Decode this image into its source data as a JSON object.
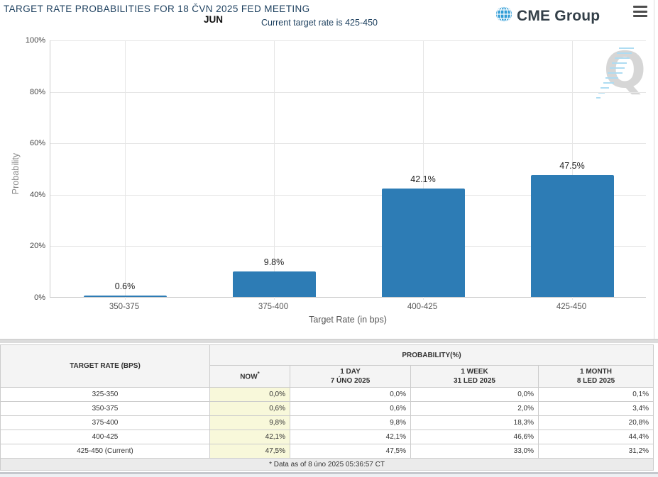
{
  "header": {
    "title": "TARGET RATE PROBABILITIES FOR 18 ČVN 2025 FED MEETING",
    "month_label": "JUN",
    "subtitle": "Current target rate is 425-450",
    "brand_name": "CME Group"
  },
  "chart_data": {
    "type": "bar",
    "categories": [
      "350-375",
      "375-400",
      "400-425",
      "425-450"
    ],
    "values": [
      0.6,
      9.8,
      42.1,
      47.5
    ],
    "value_labels": [
      "0.6%",
      "9.8%",
      "42.1%",
      "47.5%"
    ],
    "xlabel": "Target Rate (in bps)",
    "ylabel": "Probability",
    "ylim": [
      0,
      100
    ],
    "ytick_values": [
      0,
      20,
      40,
      60,
      80,
      100
    ],
    "ytick_labels": [
      "0%",
      "20%",
      "40%",
      "60%",
      "80%",
      "100%"
    ],
    "grid": true,
    "legend": "none",
    "bar_color": "#2d7cb5",
    "watermark_letter": "Q"
  },
  "table": {
    "rate_header": "TARGET RATE (BPS)",
    "probability_group_header": "PROBABILITY(%)",
    "now_header": "NOW",
    "now_asterisk": "*",
    "subheaders": [
      {
        "line1": "1 DAY",
        "line2": "7 ÚNO 2025"
      },
      {
        "line1": "1 WEEK",
        "line2": "31 LED 2025"
      },
      {
        "line1": "1 MONTH",
        "line2": "8 LED 2025"
      }
    ],
    "rows": [
      {
        "rate": "325-350",
        "values": [
          "0,0%",
          "0,0%",
          "0,0%",
          "0,1%"
        ]
      },
      {
        "rate": "350-375",
        "values": [
          "0,6%",
          "0,6%",
          "2,0%",
          "3,4%"
        ]
      },
      {
        "rate": "375-400",
        "values": [
          "9,8%",
          "9,8%",
          "18,3%",
          "20,8%"
        ]
      },
      {
        "rate": "400-425",
        "values": [
          "42,1%",
          "42,1%",
          "46,6%",
          "44,4%"
        ]
      },
      {
        "rate": "425-450 (Current)",
        "values": [
          "47,5%",
          "47,5%",
          "33,0%",
          "31,2%"
        ]
      }
    ],
    "footnote": "* Data as of 8 úno 2025 05:36:57 CT"
  },
  "colors": {
    "bar": "#2d7cb5",
    "title_text": "#1c3f5e",
    "now_column_bg": "#f8f8da",
    "header_bg": "#f4f4f4",
    "brand_navy": "#333f48",
    "globe_blue": "#2f9cd6"
  }
}
